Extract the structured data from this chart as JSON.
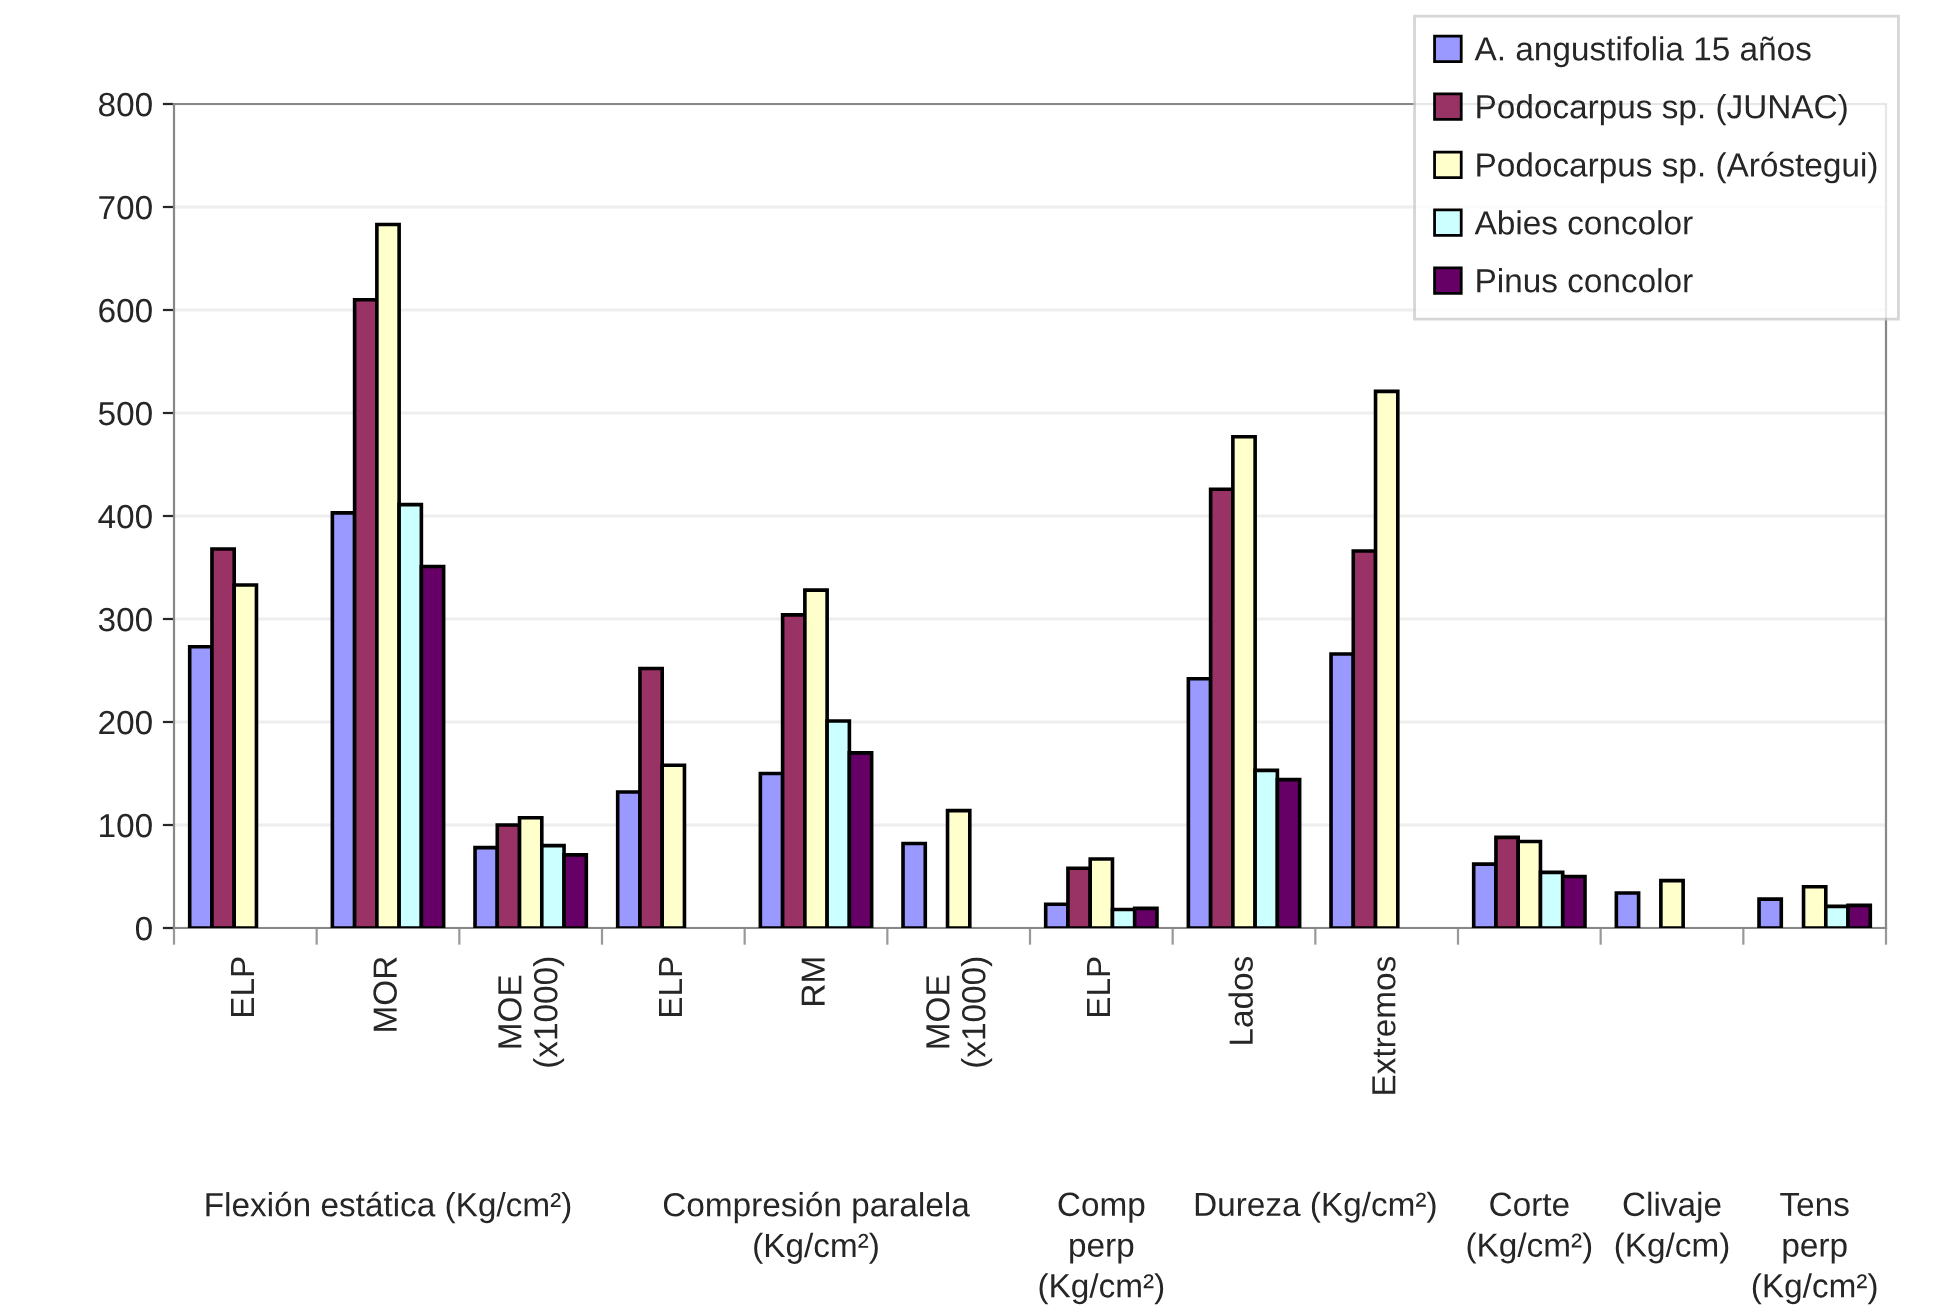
{
  "chart_data": {
    "type": "bar",
    "categories": [
      "ELP",
      "MOR",
      "MOE\n(x1000)",
      "ELP",
      "RM",
      "MOE\n(x1000)",
      "ELP",
      "Lados",
      "Extremos",
      null,
      null,
      null
    ],
    "series": [
      {
        "name": "A. angustifolia 15 años",
        "color": "#9999ff",
        "values": [
          273,
          403,
          78,
          132,
          150,
          82,
          23,
          242,
          266,
          62,
          34,
          28
        ]
      },
      {
        "name": "Podocarpus sp. (JUNAC)",
        "color": "#993366",
        "values": [
          368,
          610,
          100,
          252,
          304,
          null,
          58,
          426,
          366,
          88,
          null,
          null
        ]
      },
      {
        "name": "Podocarpus sp. (Aróstegui)",
        "color": "#ffffcc",
        "values": [
          333,
          683,
          107,
          158,
          328,
          114,
          67,
          477,
          521,
          84,
          46,
          40
        ]
      },
      {
        "name": "Abies concolor",
        "color": "#ccffff",
        "values": [
          null,
          411,
          80,
          null,
          201,
          null,
          18,
          153,
          null,
          54,
          null,
          21
        ]
      },
      {
        "name": "Pinus concolor",
        "color": "#660066",
        "values": [
          null,
          351,
          71,
          null,
          170,
          null,
          19,
          144,
          null,
          50,
          null,
          22
        ]
      }
    ],
    "annotations": [
      "Flexión estática (Kg/cm²)",
      "Compresión paralela\n(Kg/cm²)",
      "Comp\nperp\n(Kg/cm²)",
      "Dureza (Kg/cm²)",
      "Corte\n(Kg/cm²)",
      "Clivaje\n(Kg/cm)",
      "Tens\nperp\n(Kg/cm²)"
    ],
    "ylim": [
      0,
      800
    ],
    "yticks": [
      0,
      100,
      200,
      300,
      400,
      500,
      600,
      700,
      800
    ],
    "grid": "y",
    "legend": "top right"
  }
}
